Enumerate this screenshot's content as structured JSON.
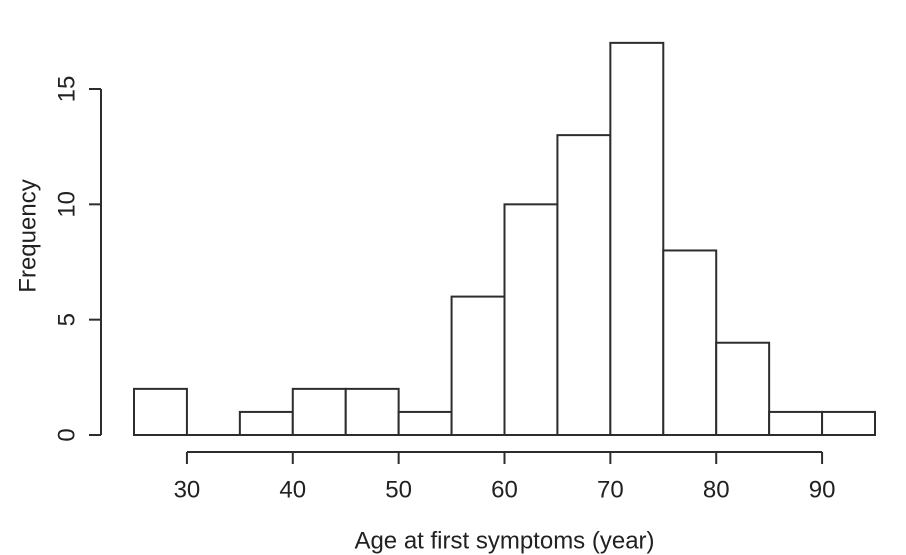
{
  "chart_data": {
    "type": "bar",
    "subtype": "histogram",
    "title": "",
    "xlabel": "Age at first symptoms (year)",
    "ylabel": "Frequency",
    "bin_start": 25,
    "bin_width": 5,
    "bin_edges": [
      25,
      30,
      35,
      40,
      45,
      50,
      55,
      60,
      65,
      70,
      75,
      80,
      85,
      90,
      95
    ],
    "counts": [
      2,
      0,
      1,
      2,
      2,
      1,
      6,
      10,
      13,
      17,
      8,
      4,
      1,
      1
    ],
    "x_ticks": [
      30,
      40,
      50,
      60,
      70,
      80,
      90
    ],
    "y_ticks": [
      0,
      5,
      10,
      15
    ],
    "xlim": [
      25,
      95
    ],
    "ylim": [
      0,
      17
    ],
    "grid": false,
    "legend": "none",
    "bar_fill": "#ffffff",
    "stroke_color": "#2d2d2d",
    "text_color": "#212121",
    "background": "#ffffff"
  }
}
